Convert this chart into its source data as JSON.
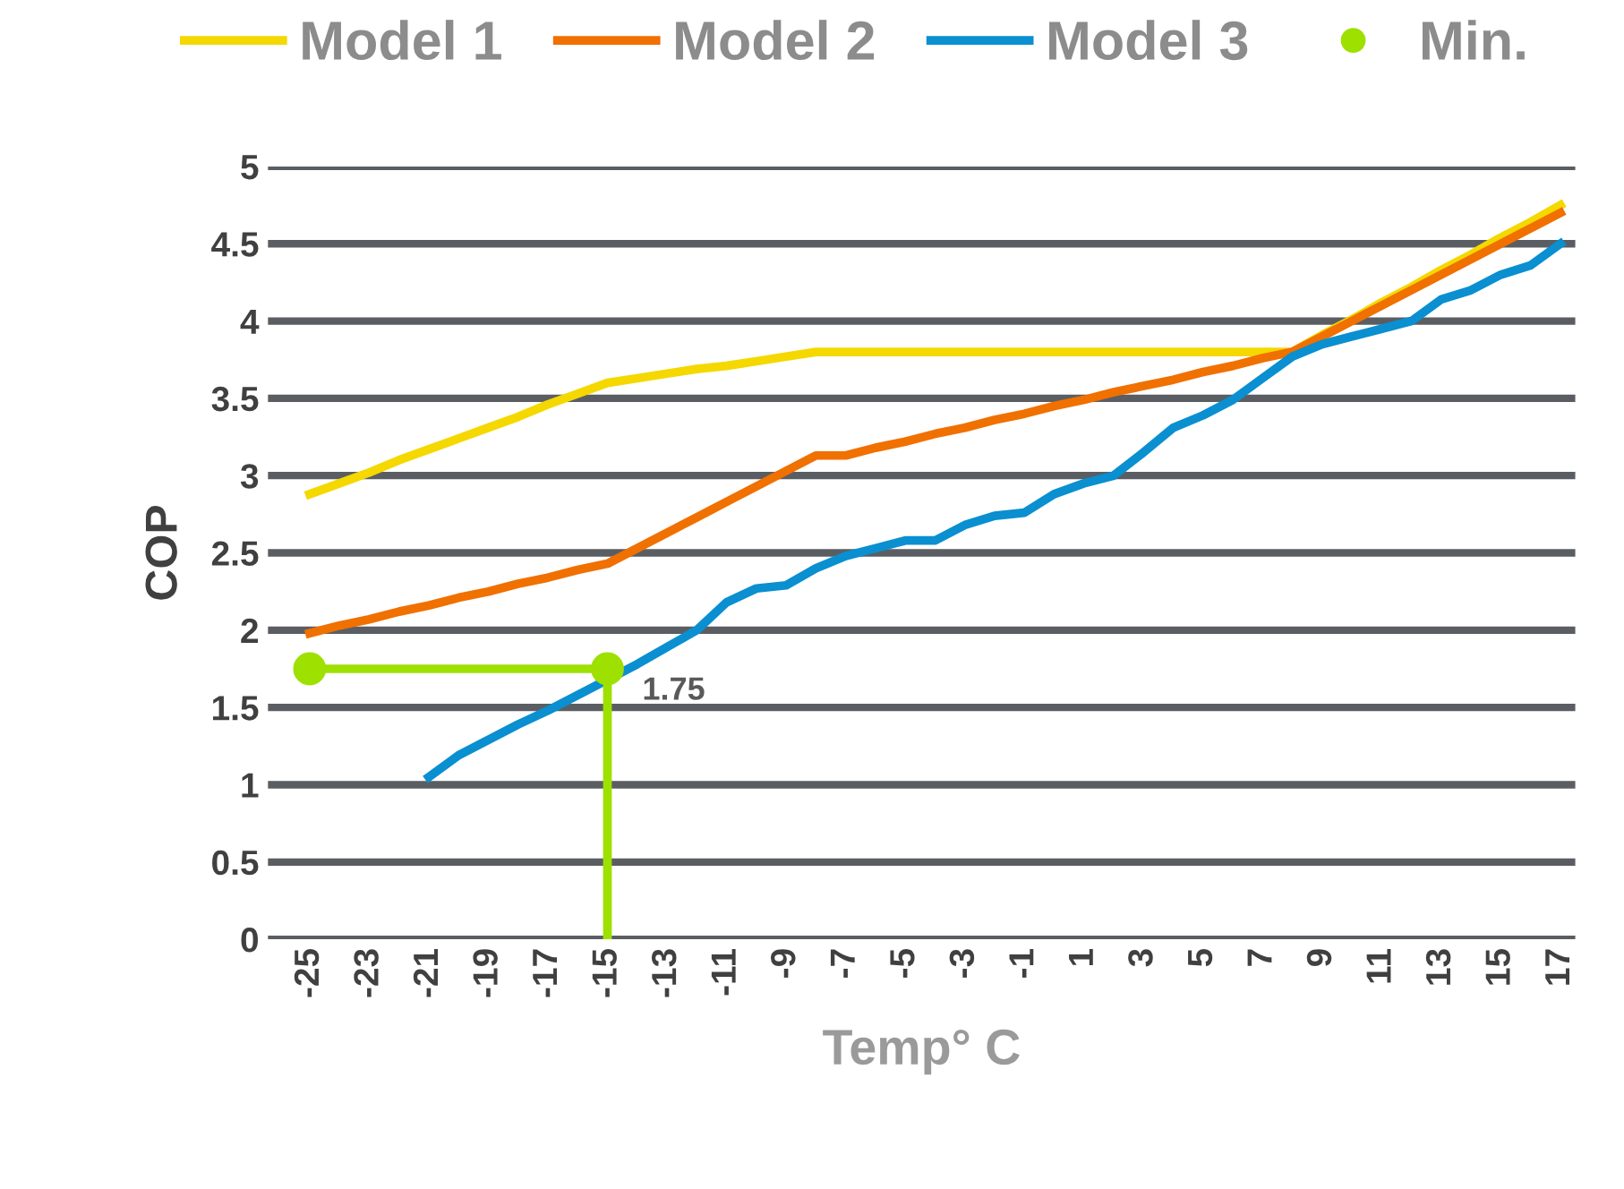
{
  "chart_data": {
    "type": "line",
    "xlabel": "Temp° C",
    "ylabel": "COP",
    "categories": [
      "-25",
      null,
      "-23",
      null,
      "-21",
      null,
      "-19",
      null,
      "-17",
      null,
      "-15",
      null,
      "-13",
      null,
      "-11",
      null,
      "-9",
      null,
      "-7",
      null,
      "-5",
      null,
      "-3",
      null,
      "-1",
      null,
      "1",
      null,
      "3",
      null,
      "5",
      null,
      "7",
      null,
      "9",
      null,
      "11",
      null,
      "13",
      null,
      "15",
      null,
      "17"
    ],
    "ylim": [
      0,
      5
    ],
    "yticks": [
      0,
      0.5,
      1,
      1.5,
      2,
      2.5,
      3,
      3.5,
      4,
      4.5,
      5
    ],
    "grid": "y",
    "legend": "top",
    "marker": "none",
    "line_style": "solid",
    "series": [
      {
        "name": "Model 1",
        "color": "#f5d800",
        "values": [
          2.88,
          2.95,
          3.02,
          3.1,
          3.17,
          3.24,
          3.31,
          3.38,
          3.46,
          3.53,
          3.6,
          3.63,
          3.66,
          3.69,
          3.71,
          3.74,
          3.77,
          3.8,
          3.8,
          3.8,
          3.8,
          3.8,
          3.8,
          3.8,
          3.8,
          3.8,
          3.8,
          3.8,
          3.8,
          3.8,
          3.8,
          3.8,
          3.8,
          3.8,
          3.91,
          4.01,
          4.12,
          4.22,
          4.33,
          4.43,
          4.54,
          4.64,
          4.75
        ]
      },
      {
        "name": "Model 2",
        "color": "#f07000",
        "values": [
          1.98,
          2.03,
          2.07,
          2.12,
          2.16,
          2.21,
          2.25,
          2.3,
          2.34,
          2.39,
          2.43,
          2.53,
          2.63,
          2.73,
          2.83,
          2.93,
          3.03,
          3.13,
          3.13,
          3.18,
          3.22,
          3.27,
          3.31,
          3.36,
          3.4,
          3.45,
          3.49,
          3.54,
          3.58,
          3.62,
          3.67,
          3.71,
          3.76,
          3.8,
          3.9,
          4.0,
          4.1,
          4.2,
          4.3,
          4.4,
          4.5,
          4.6,
          4.7
        ]
      },
      {
        "name": "Model 3",
        "color": "#0a8fd0",
        "values": [
          null,
          null,
          null,
          null,
          1.05,
          1.19,
          1.29,
          1.39,
          1.48,
          1.58,
          1.68,
          1.78,
          1.89,
          2.0,
          2.18,
          2.27,
          2.29,
          2.4,
          2.48,
          2.53,
          2.58,
          2.58,
          2.68,
          2.74,
          2.76,
          2.88,
          2.95,
          3.0,
          3.15,
          3.31,
          3.39,
          3.49,
          3.63,
          3.77,
          3.85,
          3.9,
          3.95,
          4.0,
          4.14,
          4.2,
          4.3,
          4.36,
          4.5
        ]
      },
      {
        "color": "#9ee000",
        "x": [
          "-25",
          "-15",
          "-15"
        ],
        "values": [
          1.75,
          1.75,
          0
        ]
      },
      {
        "name": "Min.",
        "type": "scatter",
        "marker": "circle",
        "color": "#9ee000",
        "x": [
          "-25",
          "-15"
        ],
        "values": [
          1.75,
          1.75
        ]
      }
    ],
    "annotations": [
      {
        "text": "1.75",
        "x": "-15",
        "y": 1.75
      }
    ]
  }
}
